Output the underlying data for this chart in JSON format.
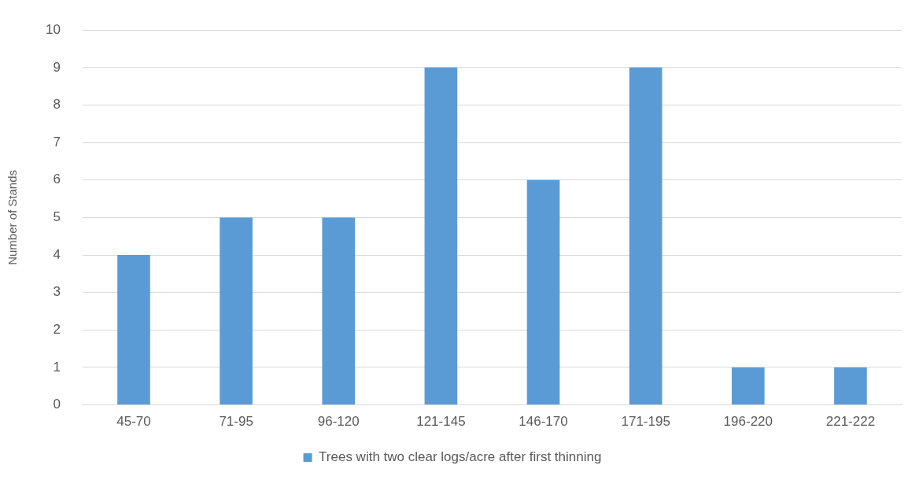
{
  "chart_data": {
    "type": "bar",
    "ylabel": "Number of Stands",
    "categories": [
      "45-70",
      "71-95",
      "96-120",
      "121-145",
      "146-170",
      "171-195",
      "196-220",
      "221-222"
    ],
    "series": [
      {
        "name": "Trees with two clear logs/acre after first thinning",
        "color": "#5b9bd5",
        "values": [
          4,
          5,
          5,
          9,
          6,
          9,
          1,
          1
        ]
      }
    ],
    "ylim": [
      0,
      10
    ],
    "yticks": [
      0,
      1,
      2,
      3,
      4,
      5,
      6,
      7,
      8,
      9,
      10
    ],
    "grid": "y",
    "legend": "bottom"
  }
}
